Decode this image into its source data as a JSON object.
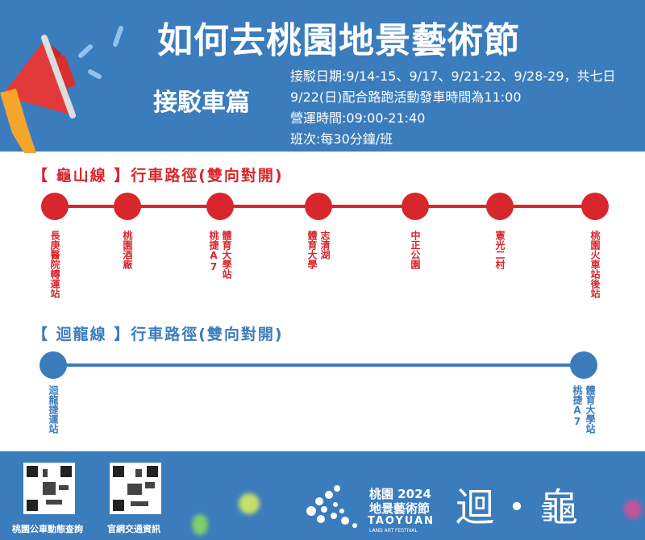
{
  "header": {
    "title": "如何去桃園地景藝術節",
    "subtitle": "接駁車篇",
    "info": [
      "接駁日期:9/14-15、9/17、9/21-22、9/28-29，共七日",
      "9/22(日)配合路跑活動發車時間為11:00",
      "營運時間:09:00-21:40",
      "班次:每30分鐘/班"
    ]
  },
  "colors": {
    "header_blue": "#3b7cbd",
    "route_red": "#d7262c",
    "route_blue": "#3b7cbd"
  },
  "guishan_line": {
    "title": "【 龜山線 】行車路徑(雙向對開)",
    "stops": [
      "長庚醫院轉運站",
      "桃園酒廠",
      "體育大學站\n桃捷A7",
      "志清湖\n體育大學",
      "中正公園",
      "憲光二村",
      "桃園火車站後站"
    ]
  },
  "huilong_line": {
    "title": "【 迴龍線 】行車路徑(雙向對開)",
    "stops": [
      "迴龍捷運站",
      "體育大學站\n桃捷A7"
    ]
  },
  "footer": {
    "qr_captions": [
      "桃園公車動態查詢",
      "官網交通資訊"
    ],
    "logo": {
      "line1": "桃園 2024",
      "line2": "地景藝術節",
      "line3": "TAOYUAN",
      "line4": "LAND ART FESTIVAL",
      "mark": "迴・龜"
    }
  }
}
